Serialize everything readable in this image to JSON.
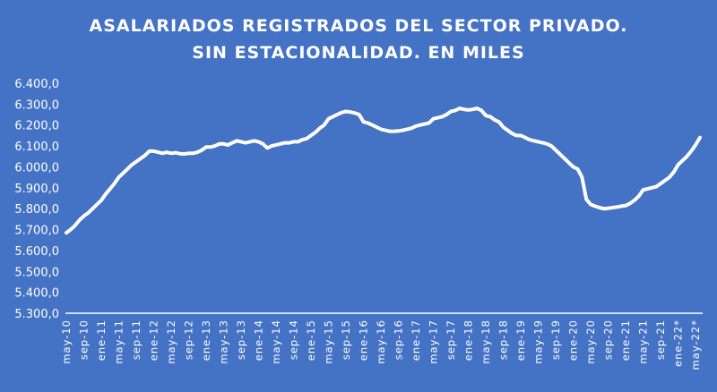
{
  "chart_data": {
    "type": "line",
    "title": "ASALARIADOS REGISTRADOS DEL SECTOR PRIVADO.",
    "subtitle": "SIN ESTACIONALIDAD. EN MILES",
    "xlabel": "",
    "ylabel": "",
    "ylim": [
      5300,
      6400
    ],
    "yticks": [
      "6.400,0",
      "6.300,0",
      "6.200,0",
      "6.100,0",
      "6.000,0",
      "5.900,0",
      "5.800,0",
      "5.700,0",
      "5.600,0",
      "5.500,0",
      "5.400,0",
      "5.300,0"
    ],
    "xticks": [
      "may-10",
      "sep-10",
      "ene-11",
      "may-11",
      "sep-11",
      "ene-12",
      "may-12",
      "sep-12",
      "ene-13",
      "may-13",
      "sep-13",
      "ene-14",
      "may-14",
      "sep-14",
      "ene-15",
      "may-15",
      "sep-15",
      "ene-16",
      "may-16",
      "sep-16",
      "ene-17",
      "may-17",
      "sep-17",
      "ene-18",
      "may-18",
      "sep-18",
      "ene-19",
      "may-19",
      "sep-19",
      "ene-20",
      "may-20",
      "sep-20",
      "ene-21",
      "may-21",
      "sep-21",
      "ene-22*",
      "may-22*"
    ],
    "grid": false,
    "legend": "none",
    "style": {
      "background": "#4472c4",
      "line_color": "#ffffff",
      "drop_lines": true
    },
    "series": [
      {
        "name": "Asalariados registrados del sector privado (miles)",
        "anchor_points": [
          {
            "x": "may-10",
            "y": 5685
          },
          {
            "x": "sep-10",
            "y": 5765
          },
          {
            "x": "ene-11",
            "y": 5840
          },
          {
            "x": "may-11",
            "y": 5950
          },
          {
            "x": "sep-11",
            "y": 6025
          },
          {
            "x": "ene-12",
            "y": 6075
          },
          {
            "x": "may-12",
            "y": 6065
          },
          {
            "x": "sep-12",
            "y": 6065
          },
          {
            "x": "ene-13",
            "y": 6095
          },
          {
            "x": "may-13",
            "y": 6110
          },
          {
            "x": "sep-13",
            "y": 6120
          },
          {
            "x": "ene-14",
            "y": 6120
          },
          {
            "x": "may-14",
            "y": 6105
          },
          {
            "x": "sep-14",
            "y": 6120
          },
          {
            "x": "ene-15",
            "y": 6150
          },
          {
            "x": "may-15",
            "y": 6230
          },
          {
            "x": "sep-15",
            "y": 6265
          },
          {
            "x": "ene-16",
            "y": 6215
          },
          {
            "x": "may-16",
            "y": 6180
          },
          {
            "x": "sep-16",
            "y": 6175
          },
          {
            "x": "ene-17",
            "y": 6195
          },
          {
            "x": "may-17",
            "y": 6230
          },
          {
            "x": "sep-17",
            "y": 6245
          },
          {
            "x": "ene-18",
            "y": 6280
          },
          {
            "x": "may-18",
            "y": 6280
          },
          {
            "x": "sep-18",
            "y": 6215
          },
          {
            "x": "ene-19",
            "y": 6150
          },
          {
            "x": "may-19",
            "y": 6125
          },
          {
            "x": "sep-19",
            "y": 6100
          },
          {
            "x": "ene-20",
            "y": 6030
          },
          {
            "x": "may-20",
            "y": 5815
          },
          {
            "x": "sep-20",
            "y": 5805
          },
          {
            "x": "ene-21",
            "y": 5820
          },
          {
            "x": "may-21",
            "y": 5890
          },
          {
            "x": "sep-21",
            "y": 5935
          },
          {
            "x": "ene-22*",
            "y": 6030
          },
          {
            "x": "may-22*",
            "y": 6140
          }
        ],
        "values": [
          5685,
          5700,
          5720,
          5745,
          5765,
          5780,
          5800,
          5820,
          5840,
          5870,
          5895,
          5920,
          5950,
          5970,
          5990,
          6010,
          6025,
          6040,
          6055,
          6075,
          6075,
          6070,
          6065,
          6070,
          6065,
          6068,
          6063,
          6062,
          6065,
          6065,
          6070,
          6080,
          6095,
          6095,
          6100,
          6110,
          6110,
          6105,
          6115,
          6125,
          6120,
          6115,
          6120,
          6125,
          6120,
          6110,
          6090,
          6100,
          6105,
          6110,
          6115,
          6115,
          6120,
          6120,
          6130,
          6135,
          6150,
          6165,
          6185,
          6200,
          6230,
          6240,
          6250,
          6260,
          6265,
          6262,
          6258,
          6250,
          6215,
          6210,
          6200,
          6190,
          6180,
          6175,
          6170,
          6170,
          6172,
          6175,
          6180,
          6185,
          6195,
          6200,
          6205,
          6210,
          6230,
          6235,
          6240,
          6250,
          6265,
          6270,
          6280,
          6275,
          6272,
          6275,
          6280,
          6270,
          6245,
          6240,
          6225,
          6215,
          6190,
          6175,
          6160,
          6150,
          6150,
          6140,
          6130,
          6125,
          6120,
          6115,
          6110,
          6100,
          6080,
          6060,
          6040,
          6020,
          6000,
          5990,
          5950,
          5845,
          5820,
          5812,
          5805,
          5800,
          5802,
          5805,
          5808,
          5812,
          5815,
          5825,
          5840,
          5860,
          5890,
          5895,
          5900,
          5905,
          5920,
          5935,
          5950,
          5975,
          6010,
          6030,
          6050,
          6075,
          6105,
          6140
        ]
      }
    ]
  }
}
